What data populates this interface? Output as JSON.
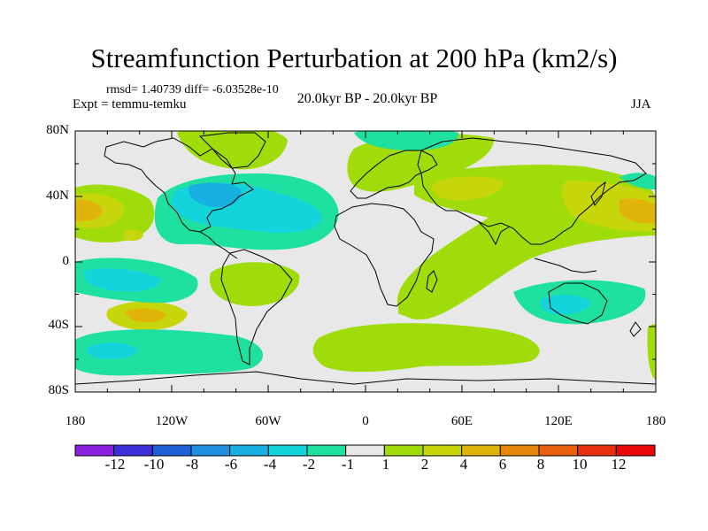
{
  "title": "Streamfunction Perturbation at 200 hPa (km2/s)",
  "stats": "rmsd= 1.40739 diff= -6.03528e-10",
  "experiment": "Expt = temmu-temku",
  "period": "20.0kyr BP - 20.0kyr BP",
  "season": "JJA",
  "y_ticks": [
    "80N",
    "40N",
    "0",
    "40S",
    "80S"
  ],
  "x_ticks": [
    "180",
    "120W",
    "60W",
    "0",
    "60E",
    "120E",
    "180"
  ],
  "colorbar": {
    "labels": [
      "-12",
      "-10",
      "-8",
      "-6",
      "-4",
      "-2",
      "-1",
      "1",
      "2",
      "4",
      "6",
      "8",
      "10",
      "12"
    ],
    "colors": [
      "#8a20e0",
      "#3d2fd8",
      "#1f60d8",
      "#1e8fe0",
      "#18b0e0",
      "#12d4da",
      "#1ee0a0",
      "#e8e8e8",
      "#a0dc0a",
      "#c6d60a",
      "#e0b40a",
      "#e6880c",
      "#e8600e",
      "#e8300e",
      "#e80808"
    ]
  },
  "colors": {
    "background_field": "#e8e8e8",
    "coast": "#000000",
    "pos1": "#a0dc0a",
    "pos2": "#c6d60a",
    "pos3": "#e0b40a",
    "neg1": "#1ee0a0",
    "neg2": "#12d4da",
    "neg3": "#18b0e0"
  }
}
